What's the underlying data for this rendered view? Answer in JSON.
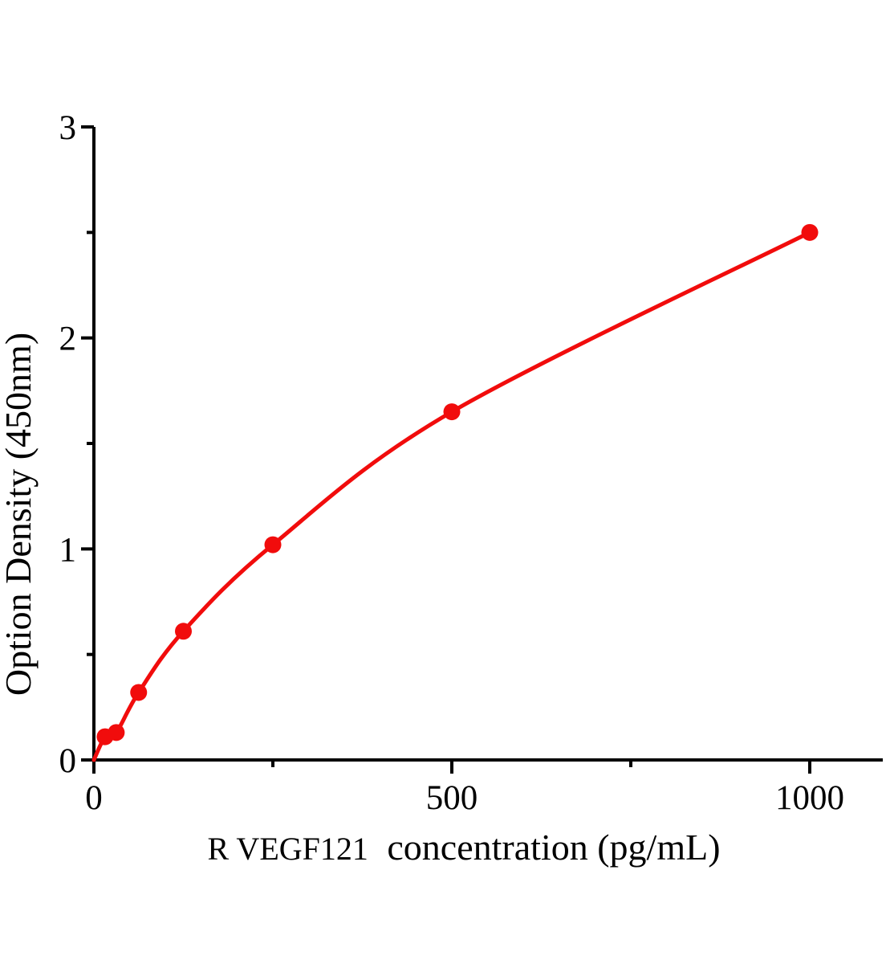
{
  "chart_data": {
    "type": "line",
    "title": "",
    "xlabel": "R VEGF121 concentration（pg/mL）",
    "xlabel_prefix": "R VEGF121",
    "xlabel_suffix": "concentration（pg/mL）",
    "ylabel": "Option Density（450nm）",
    "x": [
      15.6,
      31.25,
      62.5,
      125,
      250,
      500,
      1000
    ],
    "y": [
      0.11,
      0.13,
      0.32,
      0.61,
      1.02,
      1.65,
      2.5
    ],
    "curve_start": [
      0,
      0
    ],
    "xlim": [
      0,
      1100
    ],
    "ylim": [
      0,
      3
    ],
    "x_major_ticks": [
      0,
      500,
      1000
    ],
    "x_minor_ticks": [
      250,
      750
    ],
    "y_major_ticks": [
      0,
      1,
      2,
      3
    ],
    "y_minor_ticks": [
      0.5,
      1.5,
      2.5
    ],
    "grid": false,
    "legend": null,
    "marker": "circle",
    "line_color": "#f10c0c",
    "marker_color": "#f10c0c",
    "axis_color": "#000000",
    "background_color": "#ffffff"
  }
}
